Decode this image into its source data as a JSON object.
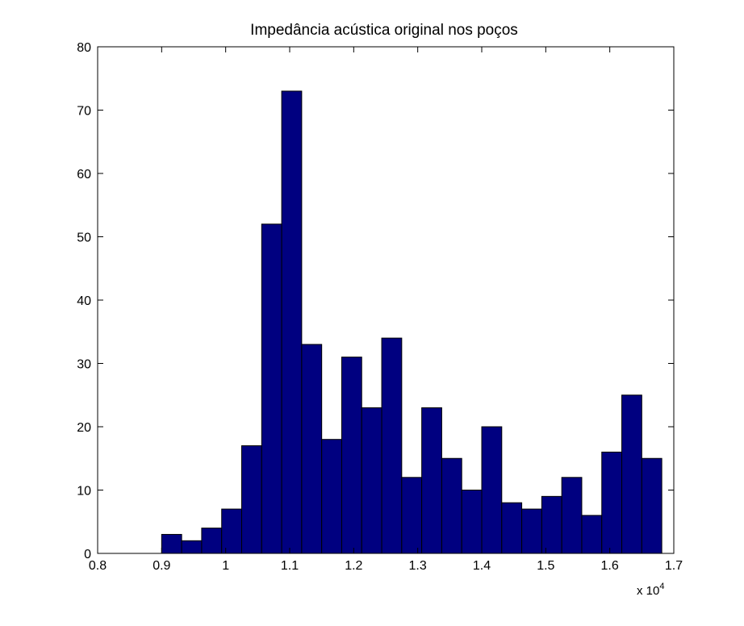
{
  "chart_data": {
    "type": "bar",
    "title": "Impedância acústica original nos poços",
    "xlabel": "",
    "ylabel": "",
    "xlim": [
      8000,
      17000
    ],
    "ylim": [
      0,
      80
    ],
    "xticks": [
      8000,
      9000,
      10000,
      11000,
      12000,
      13000,
      14000,
      15000,
      16000,
      17000
    ],
    "xtick_labels": [
      "0.8",
      "0.9",
      "1",
      "1.1",
      "1.2",
      "1.3",
      "1.4",
      "1.5",
      "1.6",
      "1.7"
    ],
    "yticks": [
      0,
      10,
      20,
      30,
      40,
      50,
      60,
      70,
      80
    ],
    "ytick_labels": [
      "0",
      "10",
      "20",
      "30",
      "40",
      "50",
      "60",
      "70",
      "80"
    ],
    "x_scale_base": "x 10",
    "x_scale_exponent": "4",
    "bin_edges": [
      9000,
      9312.5,
      9625,
      9937.5,
      10250,
      10562.5,
      10875,
      11187.5,
      11500,
      11812.5,
      12125,
      12437.5,
      12750,
      13062.5,
      13375,
      13687.5,
      14000,
      14312.5,
      14625,
      14937.5,
      15250,
      15562.5,
      15875,
      16187.5,
      16500,
      16812.5
    ],
    "values": [
      3,
      2,
      4,
      7,
      17,
      52,
      73,
      33,
      18,
      31,
      23,
      34,
      12,
      23,
      15,
      10,
      20,
      8,
      7,
      9,
      12,
      6,
      16,
      25,
      15
    ],
    "bar_color": "#000080",
    "bar_edge_color": "#000000",
    "grid": false
  }
}
